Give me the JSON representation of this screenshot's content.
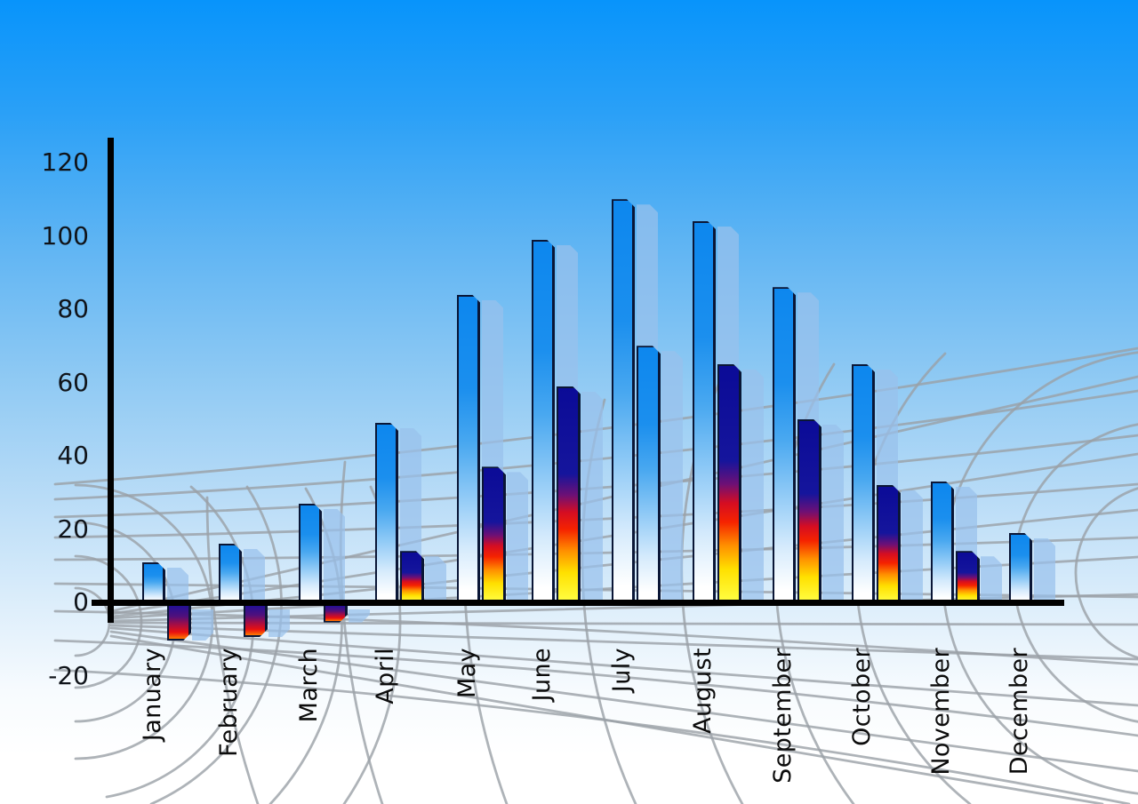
{
  "chart_data": {
    "type": "bar",
    "title": "",
    "xlabel": "",
    "ylabel": "",
    "categories": [
      "January",
      "February",
      "March",
      "April",
      "May",
      "June",
      "July",
      "August",
      "September",
      "October",
      "November",
      "December"
    ],
    "series": [
      {
        "name": "primary-blue-bars",
        "values": [
          11,
          16,
          27,
          49,
          84,
          99,
          110,
          104,
          86,
          65,
          33,
          19
        ]
      },
      {
        "name": "secondary-accent-bars",
        "values": [
          -10,
          -9,
          -5,
          14,
          37,
          59,
          70,
          65,
          50,
          32,
          14,
          null
        ],
        "styles": [
          "default",
          "default",
          "default",
          "default",
          "default",
          "default",
          "blue",
          "default",
          "default",
          "default",
          "default",
          null
        ]
      }
    ],
    "ylim": [
      -20,
      120
    ],
    "yticks": [
      120,
      100,
      80,
      60,
      40,
      20,
      0,
      -20
    ],
    "legend": "none",
    "grid": "gray curved perspective net on floor, no plot gridlines",
    "background": "blue sky gradient fading to white",
    "bar_effects": "each bar has translucent light-blue shadow copy offset right and down; beveled top-right corner; black outline"
  },
  "colors": {
    "sky_top": "#0894fb",
    "sky_bottom": "#ffffff",
    "bar_blue_top": "#0d87ee",
    "bar_blue_bottom": "#ffffff",
    "accent_navy": "#0b0b97",
    "accent_red": "#f52300",
    "accent_yellow": "#ffff45",
    "negative_bar_top": "#231095",
    "negative_bar_bottom": "#ff7b00",
    "shadow_bar": "rgba(152,192,236,0.72)",
    "axis": "#000000",
    "net_gray": "#9aa0a6",
    "label_text": "#0c0c0c"
  }
}
